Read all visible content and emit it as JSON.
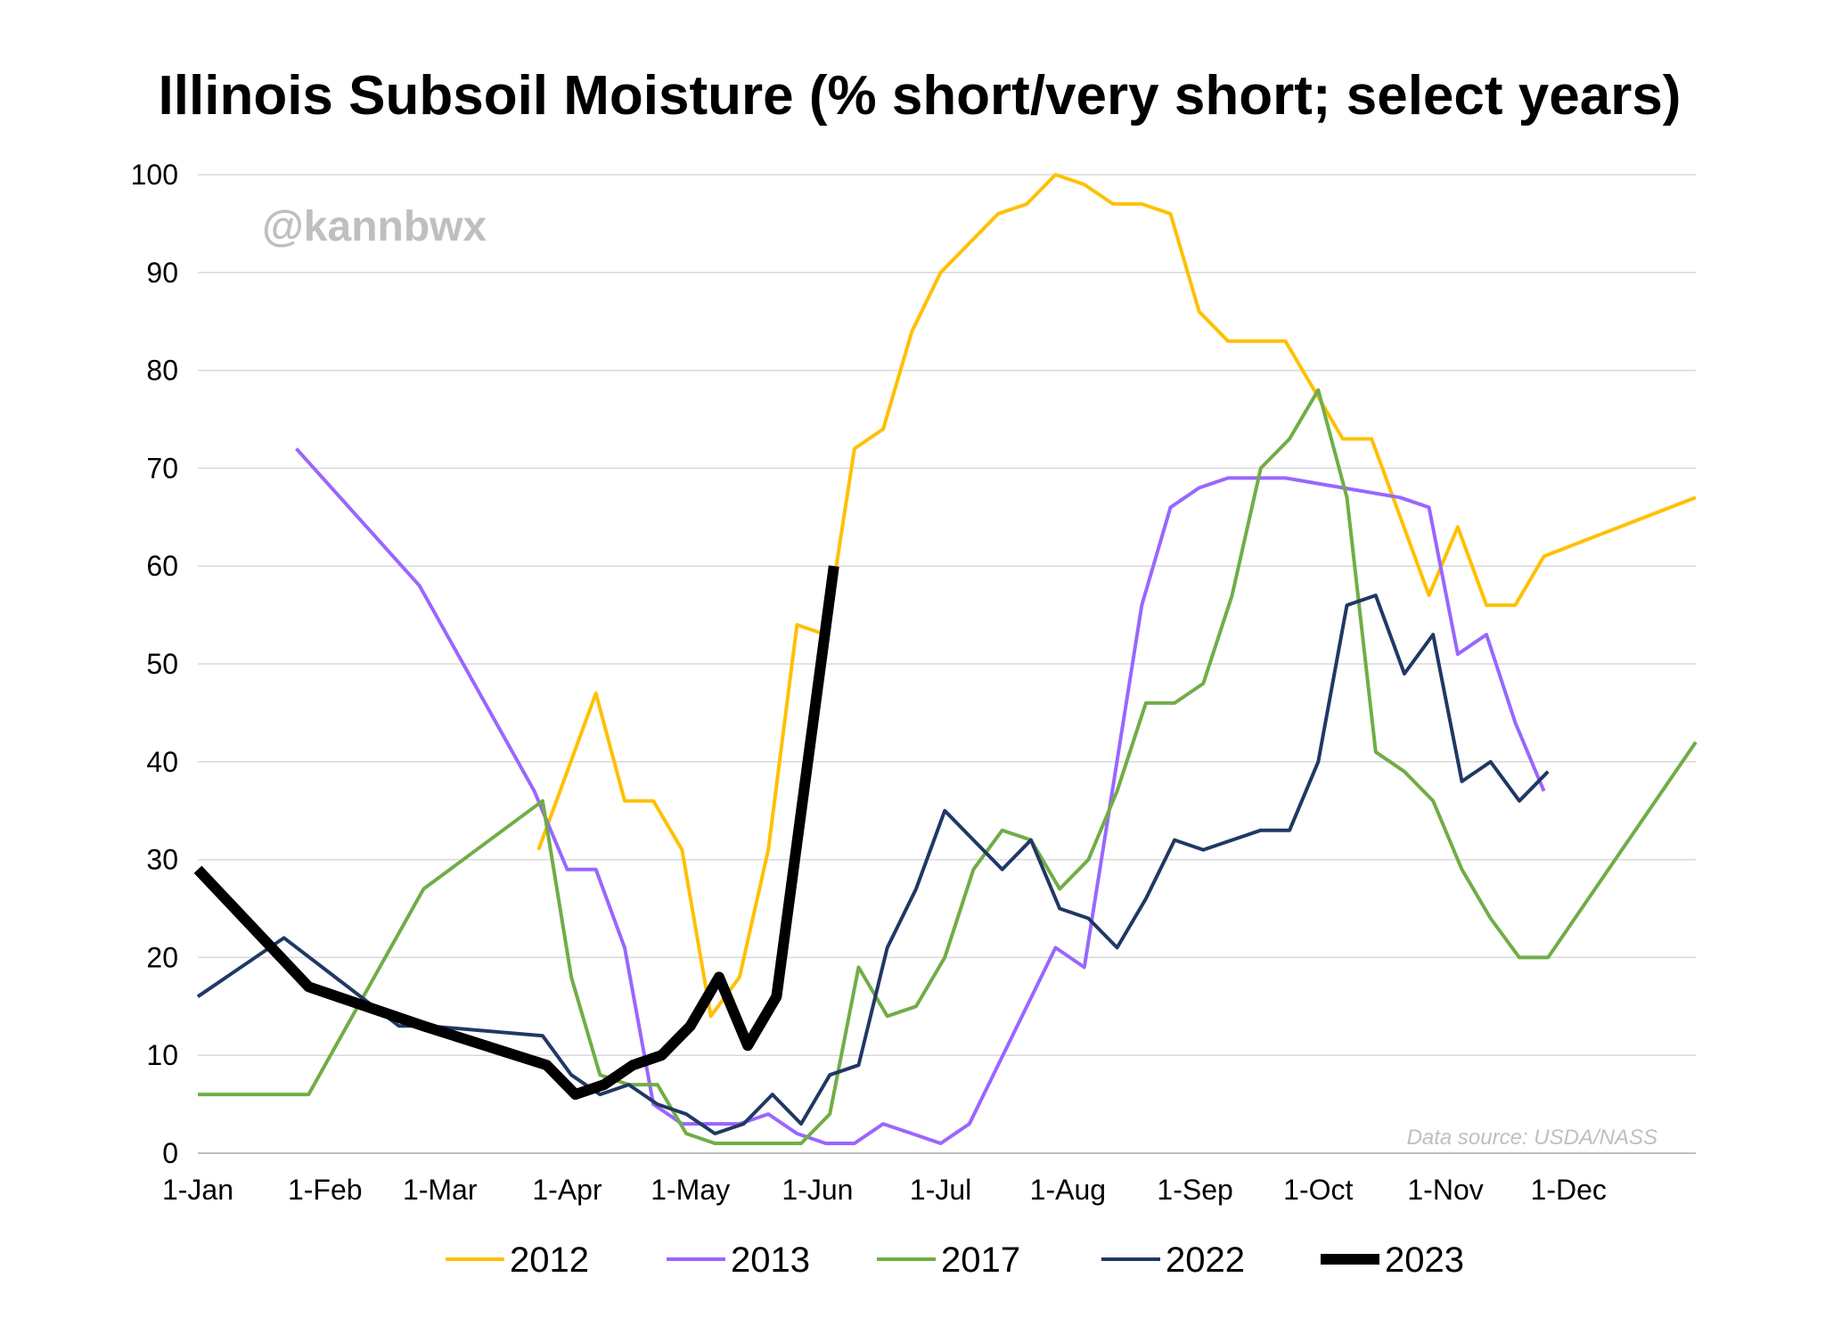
{
  "chart_data": {
    "type": "line",
    "title": "Illinois Subsoil Moisture (% short/very short; select years)",
    "watermark": "@kannbwx",
    "source_note": "Data source: USDA/NASS",
    "x_tick_labels": [
      "1-Jan",
      "1-Feb",
      "1-Mar",
      "1-Apr",
      "1-May",
      "1-Jun",
      "1-Jul",
      "1-Aug",
      "1-Sep",
      "1-Oct",
      "1-Nov",
      "1-Dec"
    ],
    "x_tick_days": [
      0,
      31,
      59,
      90,
      120,
      151,
      181,
      212,
      243,
      273,
      304,
      334
    ],
    "x_range_days": [
      0,
      365
    ],
    "ylim": [
      0,
      100
    ],
    "y_ticks": [
      "0",
      "10",
      "20",
      "30",
      "40",
      "50",
      "60",
      "70",
      "80",
      "90",
      "100"
    ],
    "grid": true,
    "legend_position": "bottom",
    "series": [
      {
        "name": "2012",
        "color": "#FFC000",
        "width": 4,
        "points": [
          [
            83,
            31
          ],
          [
            97,
            47
          ],
          [
            104,
            36
          ],
          [
            111,
            36
          ],
          [
            118,
            31
          ],
          [
            125,
            14
          ],
          [
            132,
            18
          ],
          [
            139,
            31
          ],
          [
            146,
            54
          ],
          [
            153,
            53
          ],
          [
            160,
            72
          ],
          [
            167,
            74
          ],
          [
            174,
            84
          ],
          [
            181,
            90
          ],
          [
            188,
            93
          ],
          [
            195,
            96
          ],
          [
            202,
            97
          ],
          [
            209,
            100
          ],
          [
            216,
            99
          ],
          [
            223,
            97
          ],
          [
            230,
            97
          ],
          [
            237,
            96
          ],
          [
            244,
            86
          ],
          [
            251,
            83
          ],
          [
            258,
            83
          ],
          [
            265,
            83
          ],
          [
            272,
            78
          ],
          [
            279,
            73
          ],
          [
            286,
            73
          ],
          [
            293,
            65
          ],
          [
            300,
            57
          ],
          [
            307,
            64
          ],
          [
            314,
            56
          ],
          [
            321,
            56
          ],
          [
            328,
            61
          ],
          [
            365,
            67
          ]
        ]
      },
      {
        "name": "2013",
        "color": "#9966FF",
        "width": 4,
        "points": [
          [
            24,
            72
          ],
          [
            54,
            58
          ],
          [
            82,
            37
          ],
          [
            90,
            29
          ],
          [
            97,
            29
          ],
          [
            104,
            21
          ],
          [
            111,
            5
          ],
          [
            118,
            3
          ],
          [
            125,
            3
          ],
          [
            132,
            3
          ],
          [
            139,
            4
          ],
          [
            146,
            2
          ],
          [
            153,
            1
          ],
          [
            160,
            1
          ],
          [
            167,
            3
          ],
          [
            174,
            2
          ],
          [
            181,
            1
          ],
          [
            188,
            3
          ],
          [
            209,
            21
          ],
          [
            216,
            19
          ],
          [
            230,
            56
          ],
          [
            237,
            66
          ],
          [
            244,
            68
          ],
          [
            251,
            69
          ],
          [
            265,
            69
          ],
          [
            293,
            67
          ],
          [
            300,
            66
          ],
          [
            307,
            51
          ],
          [
            314,
            53
          ],
          [
            321,
            44
          ],
          [
            328,
            37
          ]
        ]
      },
      {
        "name": "2017",
        "color": "#70AD47",
        "width": 4,
        "points": [
          [
            0,
            6
          ],
          [
            27,
            6
          ],
          [
            55,
            27
          ],
          [
            84,
            36
          ],
          [
            91,
            18
          ],
          [
            98,
            8
          ],
          [
            105,
            7
          ],
          [
            112,
            7
          ],
          [
            119,
            2
          ],
          [
            126,
            1
          ],
          [
            147,
            1
          ],
          [
            154,
            4
          ],
          [
            161,
            19
          ],
          [
            168,
            14
          ],
          [
            175,
            15
          ],
          [
            182,
            20
          ],
          [
            189,
            29
          ],
          [
            196,
            33
          ],
          [
            203,
            32
          ],
          [
            210,
            27
          ],
          [
            217,
            30
          ],
          [
            224,
            37
          ],
          [
            231,
            46
          ],
          [
            238,
            46
          ],
          [
            245,
            48
          ],
          [
            252,
            57
          ],
          [
            259,
            70
          ],
          [
            266,
            73
          ],
          [
            273,
            78
          ],
          [
            280,
            67
          ],
          [
            287,
            41
          ],
          [
            294,
            39
          ],
          [
            301,
            36
          ],
          [
            308,
            29
          ],
          [
            315,
            24
          ],
          [
            322,
            20
          ],
          [
            329,
            20
          ],
          [
            365,
            42
          ]
        ]
      },
      {
        "name": "2022",
        "color": "#203864",
        "width": 4,
        "points": [
          [
            0,
            16
          ],
          [
            21,
            22
          ],
          [
            49,
            13
          ],
          [
            56,
            13
          ],
          [
            84,
            12
          ],
          [
            91,
            8
          ],
          [
            98,
            6
          ],
          [
            105,
            7
          ],
          [
            112,
            5
          ],
          [
            119,
            4
          ],
          [
            126,
            2
          ],
          [
            133,
            3
          ],
          [
            140,
            6
          ],
          [
            147,
            3
          ],
          [
            154,
            8
          ],
          [
            161,
            9
          ],
          [
            168,
            21
          ],
          [
            175,
            27
          ],
          [
            182,
            35
          ],
          [
            189,
            32
          ],
          [
            196,
            29
          ],
          [
            203,
            32
          ],
          [
            210,
            25
          ],
          [
            217,
            24
          ],
          [
            224,
            21
          ],
          [
            231,
            26
          ],
          [
            238,
            32
          ],
          [
            245,
            31
          ],
          [
            252,
            32
          ],
          [
            259,
            33
          ],
          [
            266,
            33
          ],
          [
            273,
            40
          ],
          [
            280,
            56
          ],
          [
            287,
            57
          ],
          [
            294,
            49
          ],
          [
            301,
            53
          ],
          [
            308,
            38
          ],
          [
            315,
            40
          ],
          [
            322,
            36
          ],
          [
            329,
            39
          ]
        ]
      },
      {
        "name": "2023",
        "color": "#000000",
        "width": 12,
        "points": [
          [
            0,
            29
          ],
          [
            27,
            17
          ],
          [
            55,
            13
          ],
          [
            85,
            9
          ],
          [
            92,
            6
          ],
          [
            99,
            7
          ],
          [
            106,
            9
          ],
          [
            113,
            10
          ],
          [
            120,
            13
          ],
          [
            127,
            18
          ],
          [
            134,
            11
          ],
          [
            141,
            16
          ],
          [
            155,
            60
          ]
        ]
      }
    ]
  }
}
